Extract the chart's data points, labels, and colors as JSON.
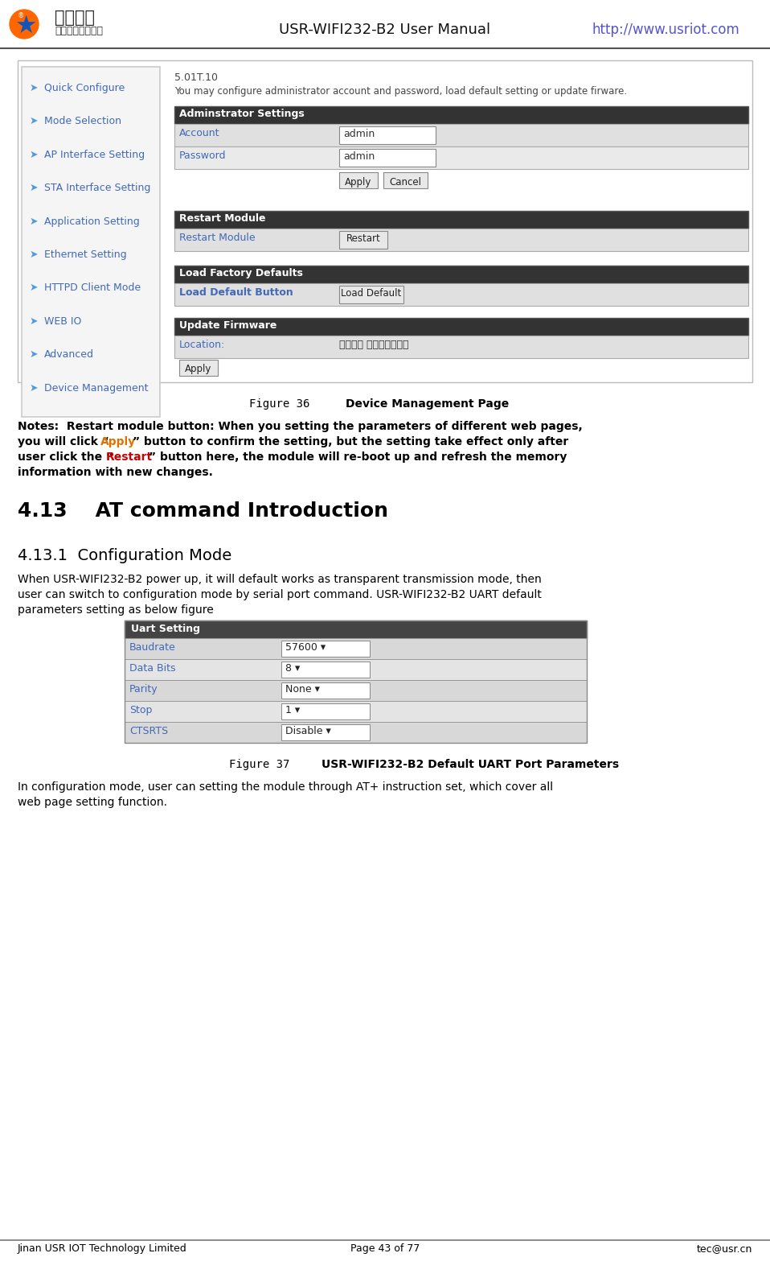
{
  "bg_color": "#ffffff",
  "header_title": "USR-WIFI232-B2 User Manual",
  "header_url": "http://www.usriot.com",
  "footer_left": "Jinan USR IOT Technology Limited",
  "footer_center": "Page 43 of 77",
  "footer_right": "tec@usr.cn",
  "sidebar_items": [
    "Quick Configure",
    "Mode Selection",
    "AP Interface Setting",
    "STA Interface Setting",
    "Application Setting",
    "Ethernet Setting",
    "HTTPD Client Mode",
    "WEB IO",
    "Advanced",
    "Device Management"
  ],
  "web_version": "5.01T.10",
  "web_desc": "You may configure administrator account and password, load default setting or update firware.",
  "admin_settings_header": "Adminstrator Settings",
  "account_label": "Account",
  "account_value": "admin",
  "password_label": "Password",
  "password_value": "admin",
  "restart_module_header": "Restart Module",
  "restart_module_label": "Restart Module",
  "restart_button": "Restart",
  "load_defaults_header": "Load Factory Defaults",
  "load_defaults_label": "Load Default Button",
  "load_default_button": "Load Default",
  "update_firmware_header": "Update Firmware",
  "location_label": "Location:",
  "location_value": "选择文件 未选择任何文件",
  "fig36_label": "Figure 36",
  "fig36_caption": "Device Management Page",
  "section_413": "4.13    AT command Introduction",
  "section_4131": "4.13.1  Configuration Mode",
  "para_4131_line1": "When USR-WIFI232-B2 power up, it will default works as transparent transmission mode, then",
  "para_4131_line2": "user can switch to configuration mode by serial port command. USR-WIFI232-B2 UART default",
  "para_4131_line3": "parameters setting as below figure",
  "uart_header": "Uart Setting",
  "uart_rows": [
    [
      "Baudrate",
      "57600 ▾"
    ],
    [
      "Data Bits",
      "8 ▾"
    ],
    [
      "Parity",
      "None ▾"
    ],
    [
      "Stop",
      "1 ▾"
    ],
    [
      "CTSRTS",
      "Disable ▾"
    ]
  ],
  "fig37_label": "Figure 37",
  "fig37_caption": "USR-WIFI232-B2 Default UART Port Parameters",
  "para2_line1": "In configuration mode, user can setting the module through AT+ instruction set, which cover all",
  "para2_line2": "web page setting function.",
  "color_link": "#4169b8",
  "color_url": "#5555cc",
  "color_notes_apply": "#e07000",
  "color_notes_restart": "#cc0000"
}
